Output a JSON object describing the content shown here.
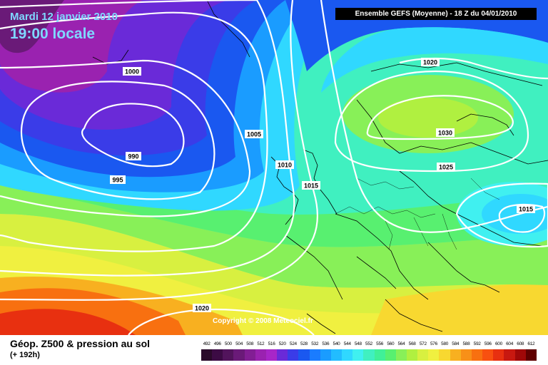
{
  "header": {
    "date": "Mardi 12 janvier 2010",
    "time": "19:00 locale",
    "model_run": "Ensemble GEFS (Moyenne)  - 18 Z du 04/01/2010"
  },
  "copyright": "Copyright © 2008 Meteociel.fr",
  "footer": {
    "title": "Géop. Z500 & pression au sol",
    "subtitle": "(+ 192h)"
  },
  "legend": {
    "values": [
      "492",
      "496",
      "500",
      "504",
      "508",
      "512",
      "516",
      "520",
      "524",
      "528",
      "532",
      "536",
      "540",
      "544",
      "548",
      "552",
      "556",
      "560",
      "564",
      "568",
      "572",
      "576",
      "580",
      "584",
      "588",
      "592",
      "596",
      "600",
      "604",
      "608",
      "612"
    ],
    "colors": [
      "#2a0a2a",
      "#3c0b44",
      "#52145c",
      "#6a1a78",
      "#821e94",
      "#9a22b0",
      "#a826c8",
      "#6a2ad8",
      "#3a3ce8",
      "#1a58f0",
      "#1a7cff",
      "#1a9cff",
      "#22bcff",
      "#30d8ff",
      "#40f0f0",
      "#40f0c0",
      "#40f098",
      "#58f070",
      "#88f058",
      "#b0f040",
      "#d8f040",
      "#f0f040",
      "#f8d830",
      "#f8b020",
      "#f89018",
      "#f87010",
      "#f85010",
      "#e83010",
      "#c81810",
      "#a00808",
      "#600000"
    ]
  },
  "isobars": [
    {
      "label": "1000"
    },
    {
      "label": "990"
    },
    {
      "label": "995"
    },
    {
      "label": "1005"
    },
    {
      "label": "1010"
    },
    {
      "label": "1015"
    },
    {
      "label": "1020"
    },
    {
      "label": "1030"
    },
    {
      "label": "1025"
    },
    {
      "label": "1015"
    },
    {
      "label": "1020"
    }
  ]
}
